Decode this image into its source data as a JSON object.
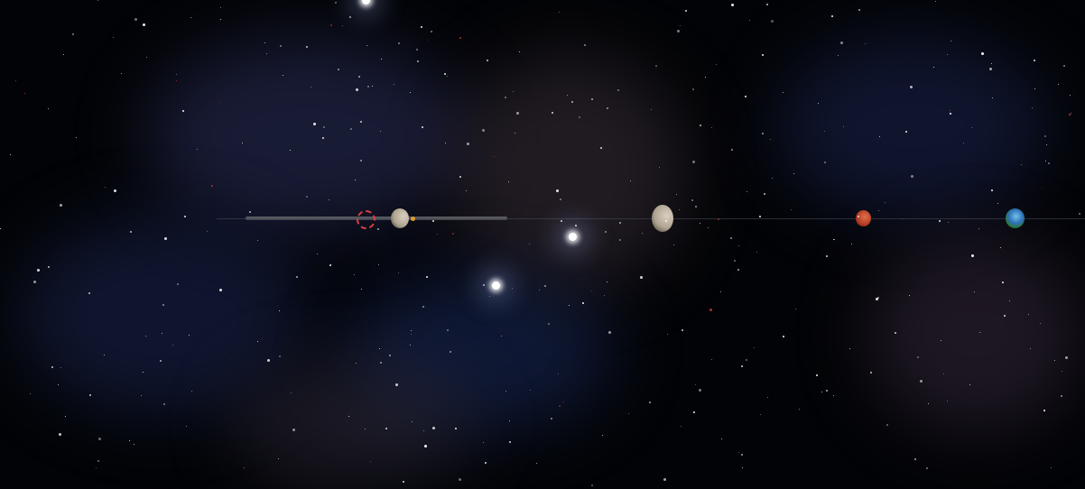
{
  "scene": {
    "background_color": "#020306",
    "nebula_colors": [
      "#2a2e55",
      "#3b2f3a",
      "#1b2a55"
    ],
    "target_color": "#d84040",
    "marker_color": "#e39a2a"
  },
  "icons": {
    "target": "dashed-target-ring-icon",
    "marker": "orange-marker-dot-icon"
  }
}
